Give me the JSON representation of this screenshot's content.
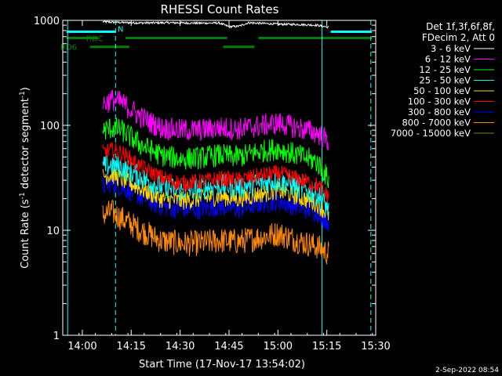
{
  "chart_data": {
    "type": "line",
    "title": "RHESSI Count Rates",
    "xlabel": "Start Time (17-Nov-17 13:54:02)",
    "ylabel_prefix": "Count Rate (s",
    "ylabel_sup1": "-1",
    "ylabel_mid": " detector segment",
    "ylabel_sup2": "-1",
    "ylabel_suffix": ")",
    "y_scale": "log",
    "ylim": [
      1,
      1000
    ],
    "xlim_minutes": [
      13.9,
      15.5
    ],
    "x_ticks": [
      {
        "label": "14:00",
        "t": 14.0
      },
      {
        "label": "14:15",
        "t": 14.25
      },
      {
        "label": "14:30",
        "t": 14.5
      },
      {
        "label": "14:45",
        "t": 14.75
      },
      {
        "label": "15:00",
        "t": 15.0
      },
      {
        "label": "15:15",
        "t": 15.25
      },
      {
        "label": "15:30",
        "t": 15.5
      }
    ],
    "y_ticks": [
      {
        "label": "1",
        "v": 1
      },
      {
        "label": "10",
        "v": 10
      },
      {
        "label": "100",
        "v": 100
      },
      {
        "label": "1000",
        "v": 1000
      }
    ],
    "legend_header": [
      "Det 1f,3f,6f,8f,",
      "FDecim 2, Att 0"
    ],
    "legend_position": "top-right",
    "series": [
      {
        "name": "3 - 6 keV",
        "color": "#ffffff",
        "t": [
          14.105,
          14.15,
          14.3,
          14.45,
          14.6,
          14.7,
          14.75,
          14.8,
          14.85,
          15.0,
          15.1,
          15.2,
          15.26
        ],
        "values": [
          970,
          960,
          945,
          950,
          940,
          945,
          870,
          880,
          950,
          920,
          915,
          900,
          860
        ]
      },
      {
        "name": "6 - 12 keV",
        "color": "#ff00ff",
        "t": [
          14.105,
          14.15,
          14.2,
          14.3,
          14.4,
          14.5,
          14.6,
          14.7,
          14.8,
          14.9,
          15.0,
          15.1,
          15.2,
          15.26
        ],
        "values": [
          160,
          175,
          165,
          120,
          95,
          90,
          90,
          95,
          92,
          98,
          105,
          95,
          85,
          70
        ]
      },
      {
        "name": "12 - 25 keV",
        "color": "#00ff00",
        "t": [
          14.105,
          14.15,
          14.2,
          14.3,
          14.4,
          14.5,
          14.6,
          14.7,
          14.8,
          14.9,
          15.0,
          15.1,
          15.2,
          15.26
        ],
        "values": [
          88,
          95,
          90,
          65,
          52,
          48,
          49,
          52,
          50,
          56,
          60,
          52,
          45,
          30
        ]
      },
      {
        "name": "25 - 50 keV",
        "color": "#00ffff",
        "t": [
          14.105,
          14.15,
          14.2,
          14.3,
          14.4,
          14.5,
          14.6,
          14.7,
          14.8,
          14.9,
          15.0,
          15.1,
          15.2,
          15.26
        ],
        "values": [
          40,
          42,
          40,
          32,
          26,
          24,
          25,
          27,
          26,
          28,
          30,
          26,
          22,
          16
        ]
      },
      {
        "name": "50 - 100 keV",
        "color": "#ffd700",
        "t": [
          14.105,
          14.15,
          14.2,
          14.3,
          14.4,
          14.5,
          14.6,
          14.7,
          14.8,
          14.9,
          15.0,
          15.1,
          15.2,
          15.26
        ],
        "values": [
          33,
          34,
          31,
          25,
          20,
          19,
          20,
          21,
          20,
          22,
          24,
          21,
          18,
          14
        ]
      },
      {
        "name": "100 - 300 keV",
        "color": "#ff0000",
        "t": [
          14.105,
          14.15,
          14.2,
          14.3,
          14.4,
          14.5,
          14.6,
          14.7,
          14.8,
          14.9,
          15.0,
          15.1,
          15.2,
          15.26
        ],
        "values": [
          55,
          58,
          55,
          40,
          32,
          28,
          29,
          31,
          30,
          33,
          35,
          31,
          27,
          21
        ]
      },
      {
        "name": "300 - 800 keV",
        "color": "#0000ff",
        "t": [
          14.105,
          14.15,
          14.2,
          14.3,
          14.4,
          14.5,
          14.6,
          14.7,
          14.8,
          14.9,
          15.0,
          15.1,
          15.2,
          15.26
        ],
        "values": [
          27,
          28,
          26,
          21,
          17,
          16,
          16,
          17,
          16,
          18,
          19,
          17,
          15,
          12
        ]
      },
      {
        "name": "800 - 7000 keV",
        "color": "#ff8c00",
        "t": [
          14.105,
          14.15,
          14.2,
          14.3,
          14.4,
          14.5,
          14.6,
          14.7,
          14.8,
          14.9,
          15.0,
          15.1,
          15.2,
          15.26
        ],
        "values": [
          14,
          15,
          13,
          10,
          8,
          7.5,
          7.5,
          8,
          7.8,
          8.5,
          9.3,
          8,
          7,
          6
        ]
      },
      {
        "name": "7000 - 15000 keV",
        "color": "#808000",
        "t": [],
        "values": []
      }
    ],
    "status_bars": [
      {
        "label": "N",
        "color": "#00ffff",
        "level": 780,
        "segments": [
          [
            13.92,
            14.17
          ],
          [
            15.27,
            15.48
          ]
        ]
      },
      {
        "label": "RDC",
        "color": "#008000",
        "level": 680,
        "segments": [
          [
            13.92,
            14.08
          ],
          [
            14.22,
            14.74
          ],
          [
            14.9,
            15.48
          ]
        ]
      },
      {
        "label": "RD6",
        "color": "#008000",
        "level": 560,
        "segments": [
          [
            14.04,
            14.24
          ],
          [
            14.72,
            14.88
          ]
        ]
      }
    ],
    "vlines": [
      {
        "t": 13.925,
        "style": "solid",
        "color": "#00ffff"
      },
      {
        "t": 14.17,
        "style": "dashed",
        "color": "#00ffff"
      },
      {
        "t": 15.225,
        "style": "solid",
        "color": "#00ffff"
      },
      {
        "t": 15.475,
        "style": "dashed",
        "color": "#00ffff"
      }
    ]
  },
  "timestamp": "2-Sep-2022 08:54"
}
